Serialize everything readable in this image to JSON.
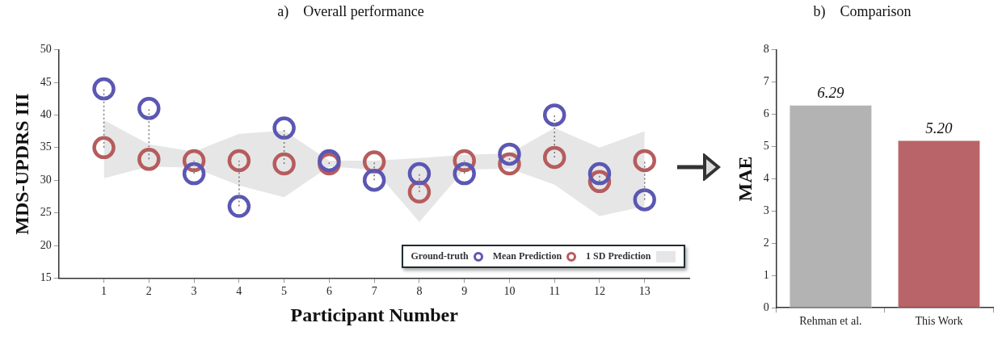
{
  "chart_data": [
    {
      "type": "scatter",
      "title": "a)    Overall performance",
      "xlabel": "Participant Number",
      "ylabel": "MDS-UPDRS III",
      "x": [
        1,
        2,
        3,
        4,
        5,
        6,
        7,
        8,
        9,
        10,
        11,
        12,
        13
      ],
      "xlim": [
        0,
        14
      ],
      "xticks": [
        1,
        2,
        3,
        4,
        5,
        6,
        7,
        8,
        9,
        10,
        11,
        12,
        13
      ],
      "ylim": [
        15,
        50
      ],
      "yticks": [
        15,
        20,
        25,
        30,
        35,
        40,
        45,
        50
      ],
      "marker": "circle",
      "legend": "bottom right",
      "series": [
        {
          "name": "Ground-truth",
          "color": "#5b57b3",
          "values": [
            44,
            41,
            31,
            26,
            38,
            33,
            30,
            31,
            31,
            34,
            40,
            31,
            27
          ],
          "errors": [
            [
              35,
              44
            ],
            [
              33.2,
              41
            ],
            [
              31,
              33
            ],
            [
              26,
              33
            ],
            [
              32.5,
              38
            ],
            [
              32.5,
              33
            ],
            [
              30,
              32.8
            ],
            [
              28.2,
              31
            ],
            [
              31,
              33
            ],
            [
              32.5,
              34
            ],
            [
              33.5,
              40
            ],
            [
              29.8,
              31
            ],
            [
              27,
              33
            ]
          ]
        },
        {
          "name": "Mean Prediction",
          "color": "#b65c5e",
          "values": [
            35,
            33.2,
            33,
            33,
            32.5,
            32.5,
            32.8,
            28.2,
            33,
            32.5,
            33.5,
            29.8,
            33
          ],
          "lower": [
            30.3,
            32.1,
            31.9,
            29.2,
            27.4,
            32.1,
            31.6,
            23.6,
            31.6,
            31.8,
            29.3,
            24.5,
            26
          ],
          "upper": [
            39.2,
            35.5,
            34.4,
            37.1,
            37.6,
            33,
            33,
            33.4,
            33.9,
            34.1,
            38,
            35,
            37.5
          ]
        }
      ],
      "annotations": [
        "1 SD Prediction"
      ]
    },
    {
      "type": "bar",
      "title": "b)    Comparison",
      "ylabel": "MAE",
      "categories": [
        "Rehman et al.",
        "This Work"
      ],
      "values": [
        6.29,
        5.2
      ],
      "value_labels": [
        "6.29",
        "5.20"
      ],
      "colors": [
        "#b3b3b3",
        "#b96468"
      ],
      "ylim": [
        0,
        8
      ],
      "yticks": [
        0,
        1,
        2,
        3,
        4,
        5,
        6,
        7,
        8
      ]
    }
  ]
}
